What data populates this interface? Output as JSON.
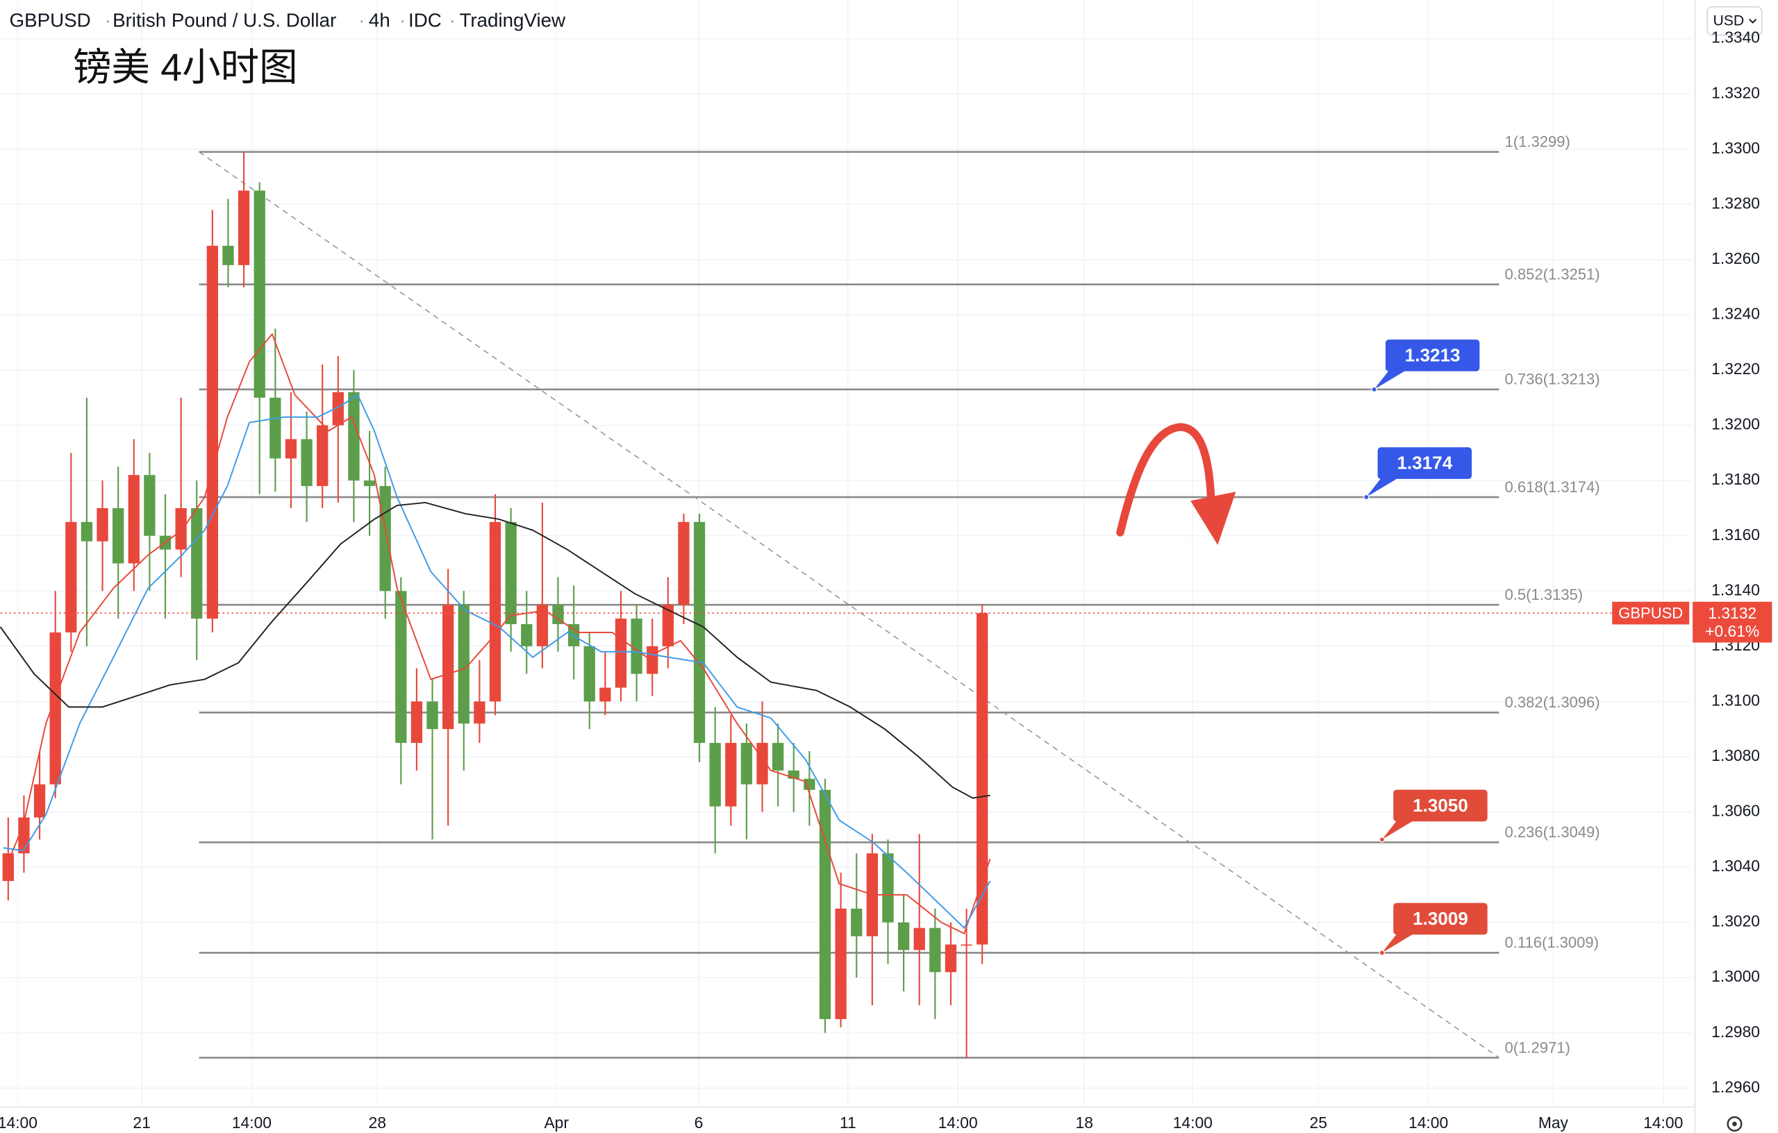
{
  "chart_data": {
    "type": "candlestick",
    "header": [
      "GBPUSD",
      "British Pound / U.S. Dollar",
      "4h",
      "IDC",
      "TradingView"
    ],
    "title": "镑美 4小时图",
    "currency": "USD",
    "grid": true,
    "up_color": "#e8483b",
    "down_color": "#5c9e4a",
    "xlim": [
      0,
      215.3
    ],
    "ylim": [
      1.2954,
      1.3354
    ],
    "xticks": [
      {
        "value": 2.2,
        "label": "14:00"
      },
      {
        "value": 18,
        "label": "21"
      },
      {
        "value": 32,
        "label": "14:00"
      },
      {
        "value": 48,
        "label": "28"
      },
      {
        "value": 70.8,
        "label": "Apr"
      },
      {
        "value": 88.9,
        "label": "6"
      },
      {
        "value": 107.9,
        "label": "11"
      },
      {
        "value": 121.9,
        "label": "14:00"
      },
      {
        "value": 138,
        "label": "18"
      },
      {
        "value": 151.8,
        "label": "14:00"
      },
      {
        "value": 167.8,
        "label": "25"
      },
      {
        "value": 181.8,
        "label": "14:00"
      },
      {
        "value": 197.7,
        "label": "May"
      },
      {
        "value": 211.7,
        "label": "14:00"
      }
    ],
    "yticks": [
      {
        "value": 1.296,
        "label": "1.2960"
      },
      {
        "value": 1.298,
        "label": "1.2980"
      },
      {
        "value": 1.3,
        "label": "1.3000"
      },
      {
        "value": 1.302,
        "label": "1.3020"
      },
      {
        "value": 1.304,
        "label": "1.3040"
      },
      {
        "value": 1.306,
        "label": "1.3060"
      },
      {
        "value": 1.308,
        "label": "1.3080"
      },
      {
        "value": 1.31,
        "label": "1.3100"
      },
      {
        "value": 1.312,
        "label": "1.3120"
      },
      {
        "value": 1.314,
        "label": "1.3140"
      },
      {
        "value": 1.316,
        "label": "1.3160"
      },
      {
        "value": 1.318,
        "label": "1.3180"
      },
      {
        "value": 1.32,
        "label": "1.3200"
      },
      {
        "value": 1.322,
        "label": "1.3220"
      },
      {
        "value": 1.324,
        "label": "1.3240"
      },
      {
        "value": 1.326,
        "label": "1.3260"
      },
      {
        "value": 1.328,
        "label": "1.3280"
      },
      {
        "value": 1.33,
        "label": "1.3300"
      },
      {
        "value": 1.332,
        "label": "1.3320"
      },
      {
        "value": 1.334,
        "label": "1.3340"
      }
    ],
    "x": [
      1,
      3,
      5,
      7,
      9,
      11,
      13,
      15,
      17,
      19,
      21,
      23,
      25,
      27,
      29,
      31,
      33,
      35,
      37,
      39,
      41,
      43,
      45,
      47,
      49,
      51,
      53,
      55,
      57,
      59,
      61,
      63,
      65,
      67,
      69,
      71,
      73,
      75,
      77,
      79,
      81,
      83,
      85,
      87,
      89,
      91,
      93,
      95,
      97,
      99,
      101,
      103,
      105,
      107,
      109,
      111,
      113,
      115,
      117,
      119,
      121,
      123,
      125
    ],
    "open": [
      1.3035,
      1.3045,
      1.3058,
      1.307,
      1.3125,
      1.3165,
      1.3158,
      1.317,
      1.315,
      1.3182,
      1.316,
      1.3155,
      1.317,
      1.313,
      1.3265,
      1.3258,
      1.3285,
      1.321,
      1.3188,
      1.3195,
      1.3178,
      1.32,
      1.3212,
      1.318,
      1.3178,
      1.314,
      1.3085,
      1.31,
      1.309,
      1.3135,
      1.3092,
      1.31,
      1.3165,
      1.3128,
      1.312,
      1.3135,
      1.3128,
      1.312,
      1.31,
      1.3105,
      1.313,
      1.311,
      1.312,
      1.3135,
      1.3165,
      1.3085,
      1.3062,
      1.3085,
      1.307,
      1.3085,
      1.3075,
      1.3072,
      1.3068,
      1.2985,
      1.3025,
      1.3015,
      1.3045,
      1.302,
      1.301,
      1.3018,
      1.3002,
      1.3012,
      1.3012
    ],
    "high": [
      1.3058,
      1.3066,
      1.3082,
      1.314,
      1.319,
      1.321,
      1.318,
      1.3185,
      1.3195,
      1.319,
      1.3175,
      1.321,
      1.318,
      1.3278,
      1.3282,
      1.3299,
      1.3288,
      1.3235,
      1.3212,
      1.3205,
      1.3222,
      1.3225,
      1.322,
      1.3198,
      1.3185,
      1.3145,
      1.3112,
      1.3108,
      1.3148,
      1.314,
      1.3115,
      1.3175,
      1.317,
      1.314,
      1.3172,
      1.3145,
      1.3142,
      1.3125,
      1.3118,
      1.314,
      1.3135,
      1.313,
      1.3145,
      1.3168,
      1.3168,
      1.3098,
      1.3095,
      1.3092,
      1.31,
      1.3092,
      1.3085,
      1.3082,
      1.3072,
      1.3038,
      1.3045,
      1.3052,
      1.305,
      1.303,
      1.3052,
      1.3025,
      1.302,
      1.3025,
      1.3135
    ],
    "low": [
      1.3028,
      1.3038,
      1.305,
      1.3065,
      1.3118,
      1.312,
      1.314,
      1.313,
      1.314,
      1.314,
      1.313,
      1.3145,
      1.3115,
      1.3125,
      1.325,
      1.325,
      1.3175,
      1.3176,
      1.317,
      1.3165,
      1.317,
      1.3172,
      1.3165,
      1.316,
      1.313,
      1.307,
      1.3075,
      1.305,
      1.3055,
      1.3075,
      1.3085,
      1.3095,
      1.3118,
      1.311,
      1.3112,
      1.3118,
      1.3108,
      1.309,
      1.3095,
      1.31,
      1.31,
      1.3102,
      1.3112,
      1.3128,
      1.3078,
      1.3045,
      1.3055,
      1.305,
      1.306,
      1.3062,
      1.306,
      1.3055,
      1.298,
      1.2982,
      1.3,
      1.299,
      1.3005,
      1.2995,
      1.299,
      1.2985,
      1.299,
      1.2971,
      1.3005
    ],
    "close": [
      1.3045,
      1.3058,
      1.307,
      1.3125,
      1.3165,
      1.3158,
      1.317,
      1.315,
      1.3182,
      1.316,
      1.3155,
      1.317,
      1.313,
      1.3265,
      1.3258,
      1.3285,
      1.321,
      1.3188,
      1.3195,
      1.3178,
      1.32,
      1.3212,
      1.318,
      1.3178,
      1.314,
      1.3085,
      1.31,
      1.309,
      1.3135,
      1.3092,
      1.31,
      1.3165,
      1.3128,
      1.312,
      1.3135,
      1.3128,
      1.312,
      1.31,
      1.3105,
      1.313,
      1.311,
      1.312,
      1.3135,
      1.3165,
      1.3085,
      1.3062,
      1.3085,
      1.307,
      1.3085,
      1.3075,
      1.3072,
      1.3068,
      1.2985,
      1.3025,
      1.3015,
      1.3045,
      1.302,
      1.301,
      1.3018,
      1.3002,
      1.3012,
      1.3012,
      1.3132
    ],
    "series": [
      {
        "color": "#e8483b",
        "x": [
          0.4,
          2.9,
          5.8,
          10.1,
          14.4,
          18.8,
          23.1,
          26,
          28.9,
          31.7,
          34.6,
          37.5,
          41.8,
          44.7,
          47.6,
          50.5,
          54.8,
          59.2,
          62,
          64.9,
          69.3,
          73.6,
          77.9,
          82.3,
          86.6,
          89.5,
          93.8,
          98.1,
          102.5,
          106.8,
          111.1,
          115.4,
          119.8,
          122.7,
          126
        ],
        "values": [
          1.3038,
          1.3055,
          1.3092,
          1.3125,
          1.3141,
          1.3153,
          1.3162,
          1.3174,
          1.3203,
          1.3223,
          1.3233,
          1.3211,
          1.3198,
          1.3203,
          1.3182,
          1.3141,
          1.3108,
          1.3112,
          1.3121,
          1.3131,
          1.3133,
          1.3125,
          1.3125,
          1.3116,
          1.3122,
          1.3112,
          1.3092,
          1.3075,
          1.3071,
          1.3034,
          1.303,
          1.303,
          1.302,
          1.3016,
          1.3043
        ]
      },
      {
        "color": "#3d9be9",
        "x": [
          0.4,
          2.9,
          5.8,
          10.1,
          14.4,
          18.8,
          23.1,
          26,
          28.9,
          31.7,
          36.1,
          40.4,
          43.3,
          45.5,
          47.6,
          50.5,
          54.8,
          59.2,
          63.5,
          67.8,
          72.2,
          76.5,
          80.8,
          85.1,
          89.5,
          93.8,
          98.1,
          102.5,
          106.8,
          111.1,
          115.4,
          119.8,
          122.7,
          126
        ],
        "values": [
          1.3047,
          1.3046,
          1.3059,
          1.3092,
          1.3116,
          1.3141,
          1.3153,
          1.3162,
          1.3178,
          1.3201,
          1.3203,
          1.3203,
          1.3207,
          1.3211,
          1.3198,
          1.3174,
          1.3147,
          1.3133,
          1.3127,
          1.3116,
          1.3125,
          1.3118,
          1.3118,
          1.3116,
          1.3114,
          1.3098,
          1.3094,
          1.3079,
          1.3057,
          1.3049,
          1.3038,
          1.3026,
          1.3018,
          1.3035
        ]
      },
      {
        "color": "#222222",
        "x": [
          0,
          4.3,
          8.7,
          13,
          17.3,
          21.6,
          26,
          30.3,
          34.6,
          39,
          43.3,
          47.6,
          50.5,
          54.1,
          59.2,
          63.5,
          67.8,
          72.2,
          76.5,
          80.8,
          85.1,
          89.5,
          93.8,
          98.1,
          103.9,
          108.2,
          112.6,
          116.9,
          121.2,
          123.8,
          126
        ],
        "values": [
          1.3127,
          1.311,
          1.3098,
          1.3098,
          1.3102,
          1.3106,
          1.3108,
          1.3114,
          1.3129,
          1.3143,
          1.3157,
          1.3166,
          1.3171,
          1.3172,
          1.3168,
          1.3166,
          1.3162,
          1.3155,
          1.3147,
          1.3139,
          1.3133,
          1.3127,
          1.3116,
          1.3107,
          1.3104,
          1.3098,
          1.309,
          1.308,
          1.3069,
          1.3065,
          1.3066
        ]
      }
    ],
    "fib_color": "#8a8a8a",
    "fib_xlim": [
      25.3,
      190.8
    ],
    "fib_levels": [
      {
        "value": 1.3299,
        "label": "1(1.3299)"
      },
      {
        "value": 1.3251,
        "label": "0.852(1.3251)"
      },
      {
        "value": 1.3213,
        "label": "0.736(1.3213)"
      },
      {
        "value": 1.3174,
        "label": "0.618(1.3174)"
      },
      {
        "value": 1.3135,
        "label": "0.5(1.3135)"
      },
      {
        "value": 1.3096,
        "label": "0.382(1.3096)"
      },
      {
        "value": 1.3049,
        "label": "0.236(1.3049)"
      },
      {
        "value": 1.3009,
        "label": "0.116(1.3009)"
      },
      {
        "value": 1.2971,
        "label": "0(1.2971)"
      }
    ],
    "trendline": {
      "x": [
        25.3,
        190.8
      ],
      "values": [
        1.3299,
        1.2971
      ]
    },
    "callouts": [
      {
        "value": 1.3213,
        "x": 174.9,
        "color": "#3558e8"
      },
      {
        "value": 1.3174,
        "x": 173.9,
        "color": "#3558e8"
      },
      {
        "value": 1.305,
        "label": "1.3050",
        "x": 175.9,
        "color": "#e14b3a"
      },
      {
        "value": 1.3009,
        "x": 175.9,
        "color": "#e14b3a"
      }
    ],
    "last_price": {
      "value": 1.3132,
      "symbol": "GBPUSD",
      "change": {
        "value": 0.61,
        "label": "+0.61%"
      },
      "color": "#ec4b3c"
    }
  }
}
